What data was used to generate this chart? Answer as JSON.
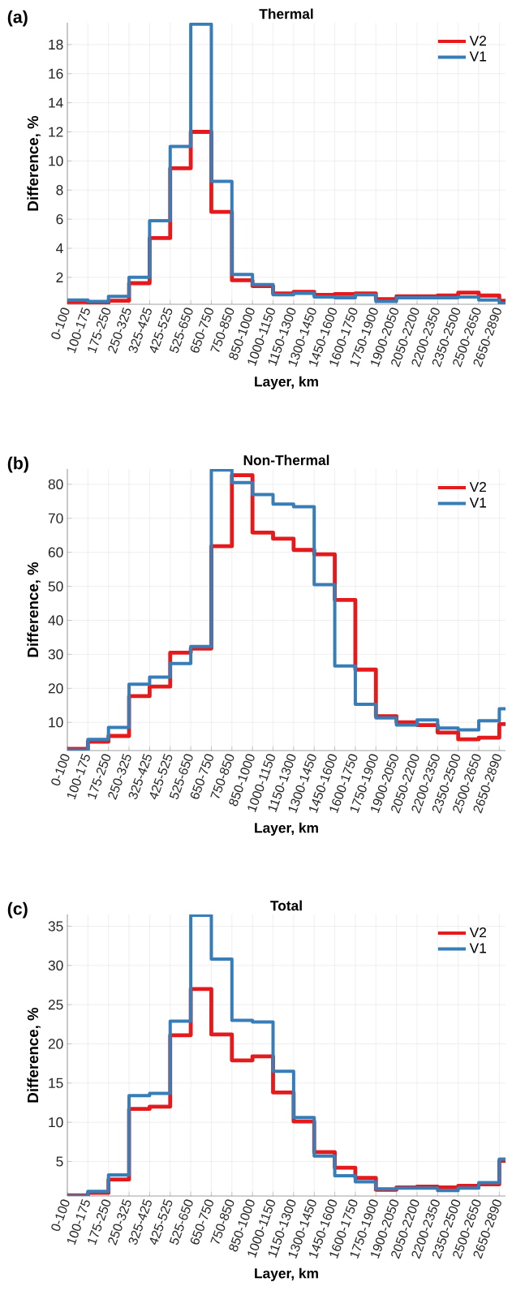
{
  "chart_data": [
    {
      "type": "step",
      "title": "Thermal",
      "xlabel": "Layer, km",
      "ylabel": "Difference, %",
      "annotations": [
        "(a)"
      ],
      "categories": [
        "0-100",
        "100-175",
        "175-250",
        "250-325",
        "325-425",
        "425-525",
        "525-650",
        "650-750",
        "750-850",
        "850-1000",
        "1000-1150",
        "1150-1300",
        "1300-1450",
        "1450-1600",
        "1600-1750",
        "1750-1900",
        "1900-2050",
        "2050-2200",
        "2200-2350",
        "2350-2500",
        "2500-2650",
        "2650-2890"
      ],
      "series": [
        {
          "name": "V2",
          "color": "#e41a1c",
          "values": [
            0.3,
            0.25,
            0.4,
            1.6,
            4.7,
            9.5,
            12.0,
            6.5,
            1.8,
            1.4,
            0.9,
            1.0,
            0.8,
            0.85,
            0.9,
            0.5,
            0.7,
            0.7,
            0.75,
            0.95,
            0.75,
            0.4
          ]
        },
        {
          "name": "V1",
          "color": "#377eb8",
          "values": [
            0.45,
            0.35,
            0.7,
            2.0,
            5.9,
            11.0,
            19.4,
            8.6,
            2.2,
            1.5,
            0.8,
            0.9,
            0.65,
            0.6,
            0.8,
            0.35,
            0.6,
            0.6,
            0.6,
            0.65,
            0.45,
            0.2
          ]
        }
      ],
      "ylim": [
        0.15,
        19.5
      ],
      "yticks": [
        2,
        4,
        6,
        8,
        10,
        12,
        14,
        16,
        18
      ],
      "grid": true,
      "legend": "top right"
    },
    {
      "type": "step",
      "title": "Non-Thermal",
      "xlabel": "Layer, km",
      "ylabel": "Difference, %",
      "annotations": [
        "(b)"
      ],
      "categories": [
        "0-100",
        "100-175",
        "175-250",
        "250-325",
        "325-425",
        "425-525",
        "525-650",
        "650-750",
        "750-850",
        "850-1000",
        "1000-1150",
        "1150-1300",
        "1300-1450",
        "1450-1600",
        "1600-1750",
        "1750-1900",
        "1900-2050",
        "2050-2200",
        "2200-2350",
        "2350-2500",
        "2500-2650",
        "2650-2890"
      ],
      "series": [
        {
          "name": "V2",
          "color": "#e41a1c",
          "values": [
            2.2,
            4.3,
            6.0,
            17.7,
            20.5,
            30.5,
            31.7,
            61.8,
            82.7,
            65.8,
            64.0,
            60.7,
            59.4,
            46.0,
            25.5,
            11.8,
            10.0,
            9.2,
            7.0,
            5.0,
            5.5,
            9.5
          ]
        },
        {
          "name": "V1",
          "color": "#377eb8",
          "values": [
            1.8,
            5.0,
            8.5,
            21.2,
            23.3,
            27.3,
            32.3,
            84.2,
            80.5,
            77.0,
            74.2,
            73.4,
            50.5,
            26.6,
            15.3,
            11.3,
            9.2,
            10.7,
            8.3,
            7.8,
            10.5,
            14.0
          ]
        }
      ],
      "ylim": [
        1.7,
        84.5
      ],
      "yticks": [
        10,
        20,
        30,
        40,
        50,
        60,
        70,
        80
      ],
      "grid": true,
      "legend": "top right"
    },
    {
      "type": "step",
      "title": "Total",
      "xlabel": "Layer, km",
      "ylabel": "Difference, %",
      "annotations": [
        "(c)"
      ],
      "categories": [
        "0-100",
        "100-175",
        "175-250",
        "250-325",
        "325-425",
        "425-525",
        "525-650",
        "650-750",
        "750-850",
        "850-1000",
        "1000-1150",
        "1150-1300",
        "1300-1450",
        "1450-1600",
        "1600-1750",
        "1750-1900",
        "1900-2050",
        "2050-2200",
        "2200-2350",
        "2350-2500",
        "2500-2650",
        "2650-2890"
      ],
      "series": [
        {
          "name": "V2",
          "color": "#e41a1c",
          "values": [
            0.7,
            1.0,
            2.7,
            11.7,
            12.0,
            21.1,
            27.0,
            21.2,
            17.9,
            18.4,
            13.8,
            10.1,
            6.2,
            4.2,
            2.9,
            1.4,
            1.7,
            1.8,
            1.7,
            1.9,
            2.1,
            5.1
          ]
        },
        {
          "name": "V1",
          "color": "#377eb8",
          "values": [
            0.6,
            1.2,
            3.3,
            13.4,
            13.7,
            22.9,
            36.4,
            30.8,
            23.0,
            22.8,
            16.5,
            10.6,
            5.7,
            3.2,
            2.4,
            1.5,
            1.6,
            1.6,
            1.3,
            1.6,
            2.3,
            5.3
          ]
        }
      ],
      "ylim": [
        0.6,
        36.5
      ],
      "yticks": [
        5,
        10,
        15,
        20,
        25,
        30,
        35
      ],
      "grid": true,
      "legend": "top right"
    }
  ]
}
